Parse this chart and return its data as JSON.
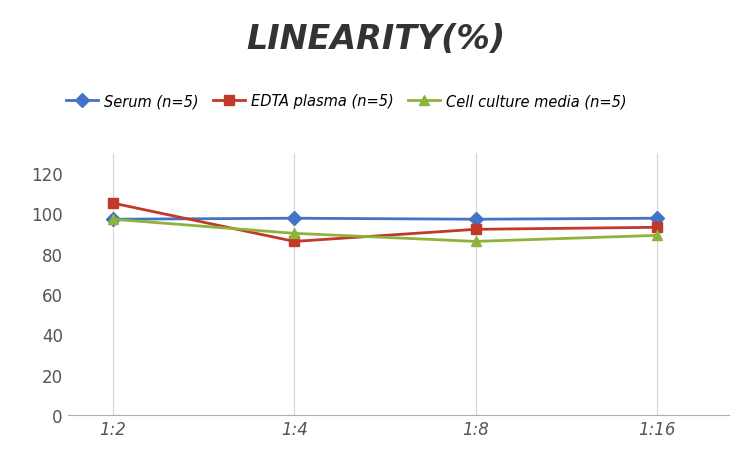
{
  "title": "LINEARITY(%)",
  "x_labels": [
    "1:2",
    "1:4",
    "1:8",
    "1:16"
  ],
  "x_positions": [
    0,
    1,
    2,
    3
  ],
  "series": [
    {
      "label": "Serum (n=5)",
      "values": [
        97,
        97.5,
        97,
        97.5
      ],
      "color": "#4472C4",
      "marker": "D",
      "marker_size": 7,
      "linewidth": 2.0
    },
    {
      "label": "EDTA plasma (n=5)",
      "values": [
        105,
        86,
        92,
        93
      ],
      "color": "#C0392B",
      "marker": "s",
      "marker_size": 7,
      "linewidth": 2.0
    },
    {
      "label": "Cell culture media (n=5)",
      "values": [
        97,
        90,
        86,
        89
      ],
      "color": "#8DB33A",
      "marker": "^",
      "marker_size": 7,
      "linewidth": 2.0
    }
  ],
  "ylim": [
    0,
    130
  ],
  "yticks": [
    0,
    20,
    40,
    60,
    80,
    100,
    120
  ],
  "background_color": "#FFFFFF",
  "grid_color": "#D5D5D5",
  "title_fontsize": 24,
  "legend_fontsize": 10.5,
  "tick_fontsize": 12
}
